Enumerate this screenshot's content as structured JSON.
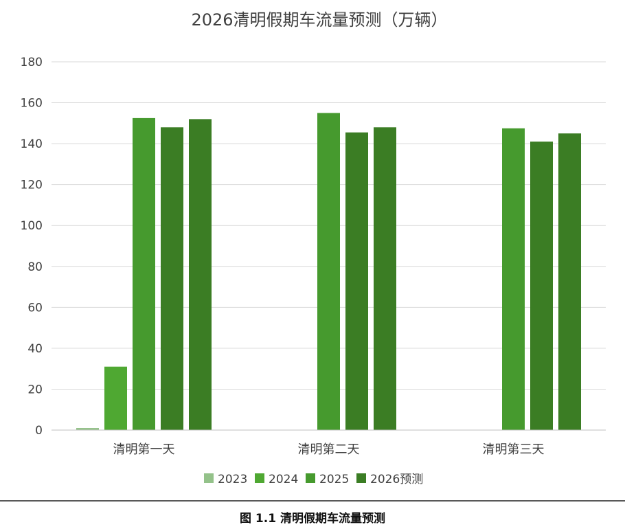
{
  "chart_data": {
    "type": "bar",
    "title": "2026清明假期车流量预测（万辆）",
    "categories": [
      "清明第一天",
      "清明第二天",
      "清明第三天"
    ],
    "series": [
      {
        "name": "2023",
        "color": "#94c28a",
        "values": [
          1,
          null,
          null
        ]
      },
      {
        "name": "2024",
        "color": "#4fa832",
        "values": [
          31,
          null,
          null
        ]
      },
      {
        "name": "2025",
        "color": "#469a2e",
        "values": [
          152.5,
          155,
          147.5
        ]
      },
      {
        "name": "2026预测",
        "color": "#3b7d24",
        "values": [
          148,
          145.5,
          141
        ]
      },
      {
        "name": "",
        "color": "#3b7d24",
        "values": [
          152,
          148,
          145
        ]
      }
    ],
    "ylim": [
      0,
      180
    ],
    "yticks": [
      0,
      20,
      40,
      60,
      80,
      100,
      120,
      140,
      160,
      180
    ],
    "grid": true,
    "legend": "bottom",
    "legend_items": [
      {
        "name": "2023",
        "color": "#94c28a"
      },
      {
        "name": "2024",
        "color": "#4fa832"
      },
      {
        "name": "2025",
        "color": "#469a2e"
      },
      {
        "name": "2026预测",
        "color": "#3b7d24"
      }
    ]
  },
  "caption": "图 1.1  清明假期车流量预测"
}
